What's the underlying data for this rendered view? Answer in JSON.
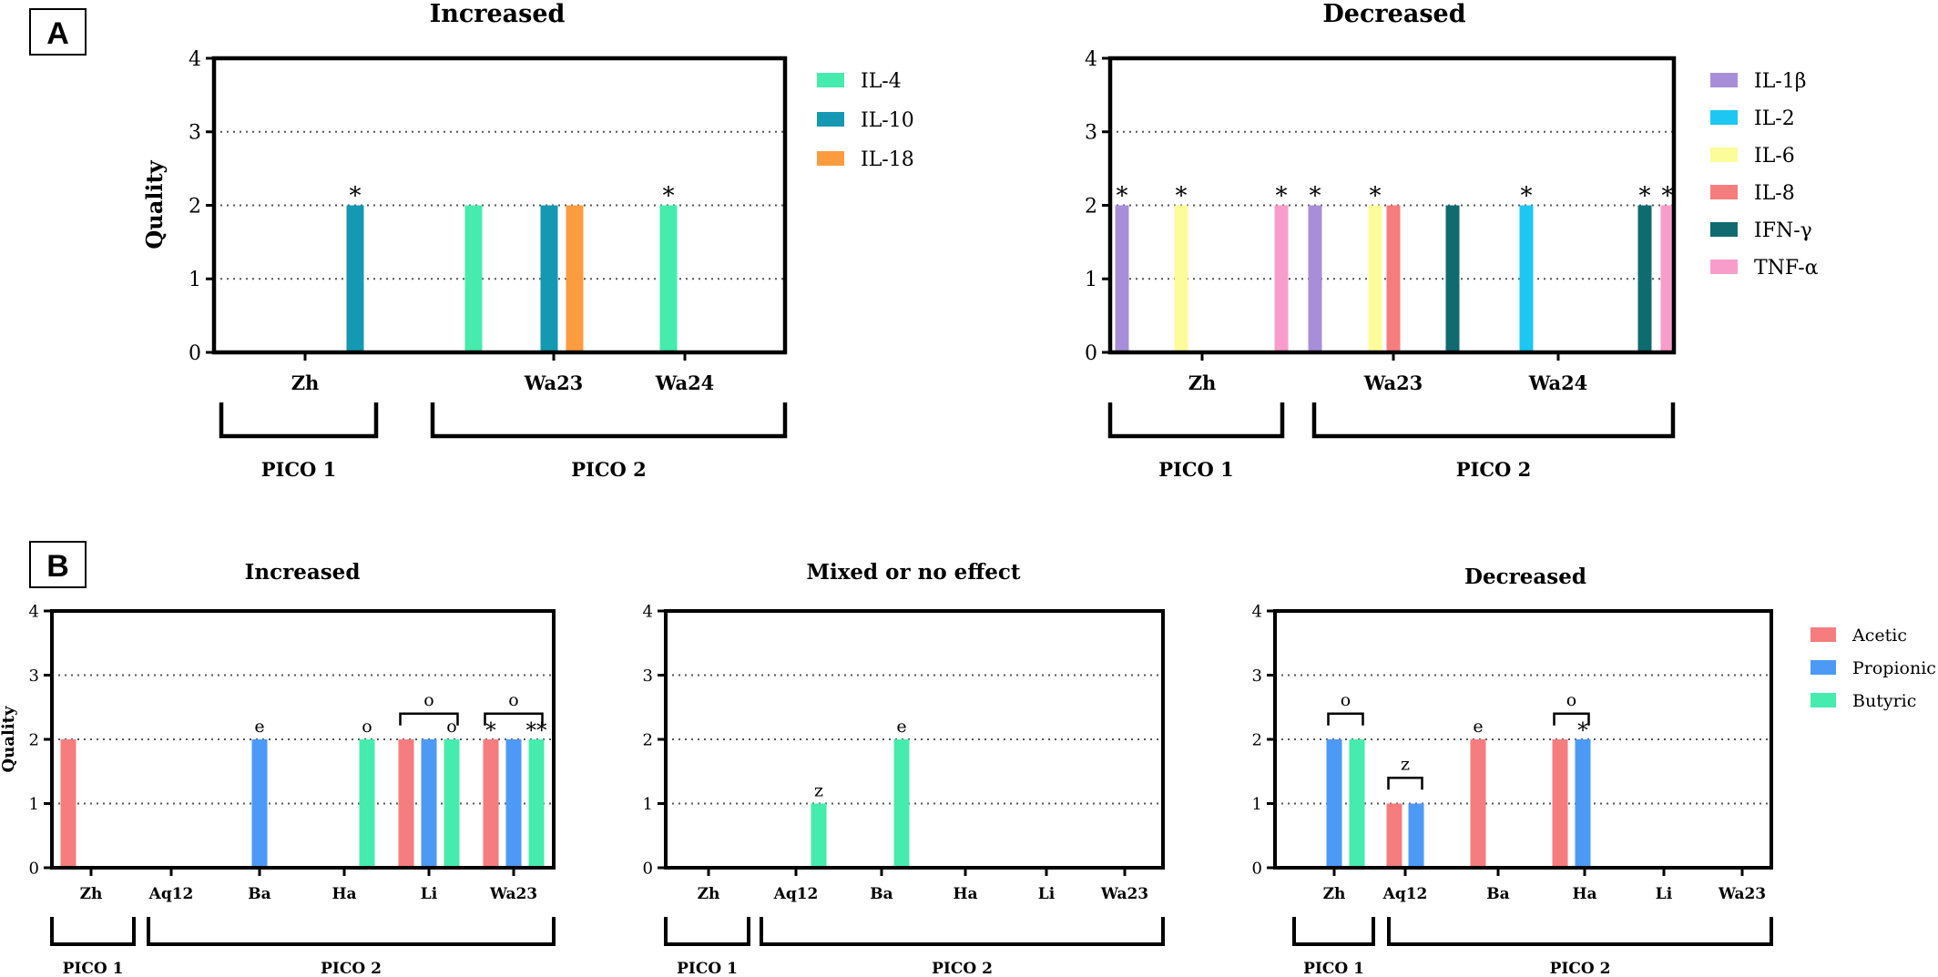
{
  "panels": [
    {
      "letter": "A"
    },
    {
      "letter": "B"
    }
  ],
  "colors": {
    "IL-4": "#45ecad",
    "IL-10": "#1599b2",
    "IL-18": "#fd9c3f",
    "IL-1β": "#a88ed8",
    "IL-2": "#1cc8f3",
    "IL-6": "#fcfc9a",
    "IL-8": "#f67d7d",
    "IFN-γ": "#0f6b70",
    "TNF-α": "#f89dcb",
    "Acetic": "#f67d7d",
    "Propionic": "#4c9af6",
    "Butyric": "#45ecad"
  },
  "chart_data": [
    {
      "type": "bar",
      "title": "Increased",
      "ylabel": "Quality",
      "ylim": [
        0,
        4
      ],
      "yticks": [
        "0",
        "1",
        "2",
        "3",
        "4"
      ],
      "categories": [
        "Zh",
        "Wa23",
        "Wa24"
      ],
      "legend": [
        "IL-4",
        "IL-10",
        "IL-18"
      ],
      "bars": [
        {
          "category": "Zh",
          "series": "IL-10",
          "value": 2,
          "mark": "*"
        },
        {
          "category": "Wa23",
          "series": "IL-4",
          "value": 2,
          "mark": ""
        },
        {
          "category": "Wa23",
          "series": "IL-10",
          "value": 2,
          "mark": ""
        },
        {
          "category": "Wa23",
          "series": "IL-18",
          "value": 2,
          "mark": ""
        },
        {
          "category": "Wa24",
          "series": "IL-4",
          "value": 2,
          "mark": "*"
        }
      ],
      "groups": [
        {
          "label": "PICO 1",
          "categories": [
            "Zh"
          ]
        },
        {
          "label": "PICO 2",
          "categories": [
            "Wa23",
            "Wa24"
          ]
        }
      ]
    },
    {
      "type": "bar",
      "title": "Decreased",
      "ylabel": "",
      "ylim": [
        0,
        4
      ],
      "yticks": [
        "0",
        "1",
        "2",
        "3",
        "4"
      ],
      "categories": [
        "Zh",
        "Wa23",
        "Wa24"
      ],
      "legend": [
        "IL-1β",
        "IL-2",
        "IL-6",
        "IL-8",
        "IFN-γ",
        "TNF-α"
      ],
      "bars": [
        {
          "category": "Zh",
          "series": "IL-1β",
          "value": 2,
          "mark": "*"
        },
        {
          "category": "Zh",
          "series": "IL-6",
          "value": 2,
          "mark": "*"
        },
        {
          "category": "Zh",
          "series": "TNF-α",
          "value": 2,
          "mark": "*"
        },
        {
          "category": "Wa23",
          "series": "IL-1β",
          "value": 2,
          "mark": "*"
        },
        {
          "category": "Wa23",
          "series": "IL-6",
          "value": 2,
          "mark": "*"
        },
        {
          "category": "Wa23",
          "series": "IL-8",
          "value": 2,
          "mark": ""
        },
        {
          "category": "Wa23",
          "series": "IFN-γ",
          "value": 2,
          "mark": ""
        },
        {
          "category": "Wa24",
          "series": "IL-2",
          "value": 2,
          "mark": "*"
        },
        {
          "category": "Wa24",
          "series": "IFN-γ",
          "value": 2,
          "mark": "*"
        },
        {
          "category": "Wa24",
          "series": "TNF-α",
          "value": 2,
          "mark": "*"
        }
      ],
      "groups": [
        {
          "label": "PICO 1",
          "categories": [
            "Zh"
          ]
        },
        {
          "label": "PICO 2",
          "categories": [
            "Wa23",
            "Wa24"
          ]
        }
      ]
    },
    {
      "type": "bar",
      "title": "Increased",
      "ylabel": "Quality",
      "ylim": [
        0,
        4
      ],
      "yticks": [
        "0",
        "1",
        "2",
        "3",
        "4"
      ],
      "categories": [
        "Zh",
        "Aq12",
        "Ba",
        "Ha",
        "Li",
        "Wa23"
      ],
      "legend": [],
      "bars": [
        {
          "category": "Zh",
          "series": "Acetic",
          "value": 2,
          "mark": ""
        },
        {
          "category": "Ba",
          "series": "Propionic",
          "value": 2,
          "mark": "e"
        },
        {
          "category": "Ha",
          "series": "Butyric",
          "value": 2,
          "mark": "o"
        },
        {
          "category": "Li",
          "series": "Acetic",
          "value": 2,
          "mark": ""
        },
        {
          "category": "Li",
          "series": "Propionic",
          "value": 2,
          "mark": ""
        },
        {
          "category": "Li",
          "series": "Butyric",
          "value": 2,
          "mark": "o"
        },
        {
          "category": "Wa23",
          "series": "Acetic",
          "value": 2,
          "mark": "*"
        },
        {
          "category": "Wa23",
          "series": "Propionic",
          "value": 2,
          "mark": ""
        },
        {
          "category": "Wa23",
          "series": "Butyric",
          "value": 2,
          "mark": "**"
        }
      ],
      "brackets": [
        {
          "category": "Li",
          "from": "Acetic",
          "to": "Butyric",
          "value": 2.4,
          "mark": "o"
        },
        {
          "category": "Wa23",
          "from": "Acetic",
          "to": "Butyric",
          "value": 2.4,
          "mark": "o"
        }
      ],
      "groups": [
        {
          "label": "PICO 1",
          "categories": [
            "Zh"
          ]
        },
        {
          "label": "PICO 2",
          "categories": [
            "Aq12",
            "Ba",
            "Ha",
            "Li",
            "Wa23"
          ]
        }
      ]
    },
    {
      "type": "bar",
      "title": "Mixed or no effect",
      "ylabel": "",
      "ylim": [
        0,
        4
      ],
      "yticks": [
        "0",
        "1",
        "2",
        "3",
        "4"
      ],
      "categories": [
        "Zh",
        "Aq12",
        "Ba",
        "Ha",
        "Li",
        "Wa23"
      ],
      "legend": [],
      "bars": [
        {
          "category": "Aq12",
          "series": "Butyric",
          "value": 1,
          "mark": "z"
        },
        {
          "category": "Ba",
          "series": "Butyric",
          "value": 2,
          "mark": "e"
        }
      ],
      "groups": [
        {
          "label": "PICO 1",
          "categories": [
            "Zh"
          ]
        },
        {
          "label": "PICO 2",
          "categories": [
            "Aq12",
            "Ba",
            "Ha",
            "Li",
            "Wa23"
          ]
        }
      ]
    },
    {
      "type": "bar",
      "title": "Decreased",
      "ylabel": "",
      "ylim": [
        0,
        4
      ],
      "yticks": [
        "0",
        "1",
        "2",
        "3",
        "4"
      ],
      "categories": [
        "Zh",
        "Aq12",
        "Ba",
        "Ha",
        "Li",
        "Wa23"
      ],
      "legend": [
        "Acetic",
        "Propionic",
        "Butyric"
      ],
      "bars": [
        {
          "category": "Zh",
          "series": "Propionic",
          "value": 2,
          "mark": ""
        },
        {
          "category": "Zh",
          "series": "Butyric",
          "value": 2,
          "mark": ""
        },
        {
          "category": "Aq12",
          "series": "Acetic",
          "value": 1,
          "mark": ""
        },
        {
          "category": "Aq12",
          "series": "Propionic",
          "value": 1,
          "mark": ""
        },
        {
          "category": "Ba",
          "series": "Acetic",
          "value": 2,
          "mark": "e"
        },
        {
          "category": "Ha",
          "series": "Acetic",
          "value": 2,
          "mark": ""
        },
        {
          "category": "Ha",
          "series": "Propionic",
          "value": 2,
          "mark": "*"
        }
      ],
      "brackets": [
        {
          "category": "Zh",
          "from": "Propionic",
          "to": "Butyric",
          "value": 2.4,
          "mark": "o"
        },
        {
          "category": "Aq12",
          "from": "Acetic",
          "to": "Propionic",
          "value": 1.4,
          "mark": "z"
        },
        {
          "category": "Ha",
          "from": "Acetic",
          "to": "Propionic",
          "value": 2.4,
          "mark": "o"
        }
      ],
      "groups": [
        {
          "label": "PICO 1",
          "categories": [
            "Zh"
          ]
        },
        {
          "label": "PICO 2",
          "categories": [
            "Aq12",
            "Ba",
            "Ha",
            "Li",
            "Wa23"
          ]
        }
      ]
    }
  ]
}
